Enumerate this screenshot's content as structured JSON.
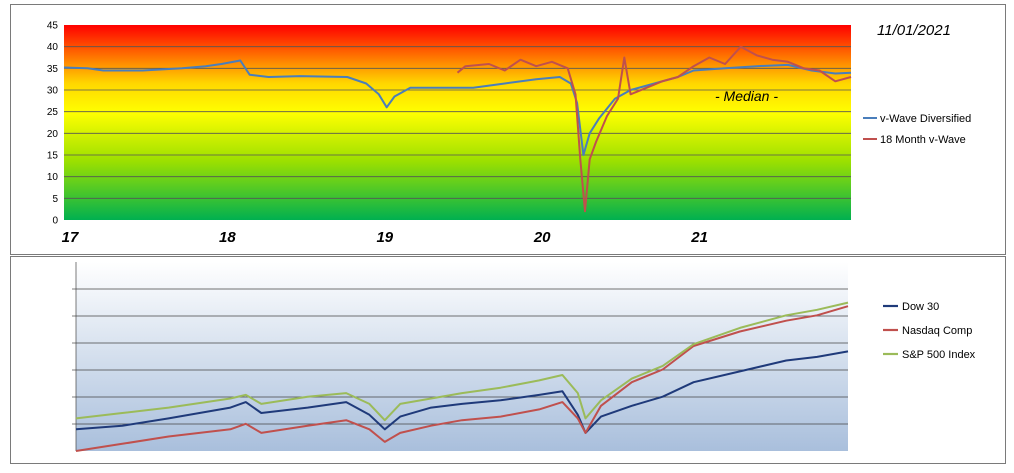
{
  "chart_data": [
    {
      "type": "line",
      "date_label": "11/01/2021",
      "annotation": "- Median -",
      "ylim": [
        0,
        45
      ],
      "yticks": [
        "0",
        "5",
        "10",
        "15",
        "20",
        "25",
        "30",
        "35",
        "40",
        "45"
      ],
      "xlim": [
        17,
        22
      ],
      "xticks": [
        "17",
        "18",
        "19",
        "20",
        "21"
      ],
      "grid": true,
      "legend_position": "right",
      "background": "red-to-green vertical gradient",
      "series": [
        {
          "name": "v-Wave Diversified",
          "color": "#4a7ebb",
          "points": [
            [
              17.0,
              35.2
            ],
            [
              17.15,
              35.0
            ],
            [
              17.25,
              34.5
            ],
            [
              17.5,
              34.5
            ],
            [
              17.75,
              35.0
            ],
            [
              17.9,
              35.5
            ],
            [
              18.0,
              36.0
            ],
            [
              18.12,
              36.8
            ],
            [
              18.18,
              33.5
            ],
            [
              18.3,
              33.0
            ],
            [
              18.5,
              33.2
            ],
            [
              18.8,
              33.0
            ],
            [
              18.92,
              31.5
            ],
            [
              19.0,
              29.0
            ],
            [
              19.05,
              26.0
            ],
            [
              19.1,
              28.5
            ],
            [
              19.2,
              30.5
            ],
            [
              19.4,
              30.5
            ],
            [
              19.6,
              30.5
            ],
            [
              19.8,
              31.5
            ],
            [
              20.0,
              32.5
            ],
            [
              20.15,
              33.0
            ],
            [
              20.22,
              31.5
            ],
            [
              20.26,
              27.0
            ],
            [
              20.3,
              15.0
            ],
            [
              20.34,
              20.0
            ],
            [
              20.4,
              23.5
            ],
            [
              20.5,
              28.0
            ],
            [
              20.6,
              30.0
            ],
            [
              20.75,
              31.5
            ],
            [
              20.9,
              33.0
            ],
            [
              21.0,
              34.5
            ],
            [
              21.2,
              35.0
            ],
            [
              21.4,
              35.5
            ],
            [
              21.6,
              35.8
            ],
            [
              21.75,
              34.5
            ],
            [
              21.9,
              33.8
            ],
            [
              22.0,
              34.0
            ]
          ]
        },
        {
          "name": "18 Month v-Wave",
          "color": "#c0504d",
          "points": [
            [
              19.5,
              34.0
            ],
            [
              19.55,
              35.5
            ],
            [
              19.7,
              36.0
            ],
            [
              19.8,
              34.5
            ],
            [
              19.9,
              37.0
            ],
            [
              20.0,
              35.5
            ],
            [
              20.1,
              36.5
            ],
            [
              20.2,
              35.0
            ],
            [
              20.25,
              29.0
            ],
            [
              20.28,
              14.0
            ],
            [
              20.31,
              2.0
            ],
            [
              20.34,
              14.0
            ],
            [
              20.38,
              18.0
            ],
            [
              20.45,
              24.0
            ],
            [
              20.52,
              28.0
            ],
            [
              20.56,
              37.5
            ],
            [
              20.6,
              29.0
            ],
            [
              20.7,
              30.5
            ],
            [
              20.8,
              32.0
            ],
            [
              20.9,
              33.0
            ],
            [
              21.0,
              35.5
            ],
            [
              21.1,
              37.5
            ],
            [
              21.2,
              36.0
            ],
            [
              21.3,
              40.0
            ],
            [
              21.4,
              38.0
            ],
            [
              21.5,
              37.0
            ],
            [
              21.6,
              36.5
            ],
            [
              21.7,
              35.0
            ],
            [
              21.8,
              34.5
            ],
            [
              21.9,
              32.0
            ],
            [
              22.0,
              33.0
            ]
          ]
        }
      ]
    },
    {
      "type": "line",
      "xlim": [
        17,
        22
      ],
      "ylim": [
        0,
        100
      ],
      "grid": true,
      "legend_position": "right",
      "series": [
        {
          "name": "Dow 30",
          "color": "#1f3a7a",
          "points": [
            [
              17.0,
              12
            ],
            [
              17.3,
              14
            ],
            [
              17.6,
              18
            ],
            [
              18.0,
              24
            ],
            [
              18.1,
              27
            ],
            [
              18.2,
              21
            ],
            [
              18.5,
              24
            ],
            [
              18.75,
              27
            ],
            [
              18.9,
              20
            ],
            [
              19.0,
              12
            ],
            [
              19.1,
              19
            ],
            [
              19.3,
              24
            ],
            [
              19.5,
              26
            ],
            [
              19.75,
              28
            ],
            [
              20.0,
              31
            ],
            [
              20.15,
              33
            ],
            [
              20.25,
              20
            ],
            [
              20.3,
              10
            ],
            [
              20.4,
              19
            ],
            [
              20.6,
              25
            ],
            [
              20.8,
              30
            ],
            [
              21.0,
              38
            ],
            [
              21.3,
              44
            ],
            [
              21.6,
              50
            ],
            [
              21.8,
              52
            ],
            [
              22.0,
              55
            ]
          ]
        },
        {
          "name": "Nasdaq Comp",
          "color": "#c0504d",
          "points": [
            [
              17.0,
              0
            ],
            [
              17.3,
              4
            ],
            [
              17.6,
              8
            ],
            [
              18.0,
              12
            ],
            [
              18.1,
              15
            ],
            [
              18.2,
              10
            ],
            [
              18.5,
              14
            ],
            [
              18.75,
              17
            ],
            [
              18.9,
              12
            ],
            [
              19.0,
              5
            ],
            [
              19.1,
              10
            ],
            [
              19.3,
              14
            ],
            [
              19.5,
              17
            ],
            [
              19.75,
              19
            ],
            [
              20.0,
              23
            ],
            [
              20.15,
              27
            ],
            [
              20.25,
              18
            ],
            [
              20.3,
              10
            ],
            [
              20.4,
              25
            ],
            [
              20.6,
              38
            ],
            [
              20.8,
              45
            ],
            [
              21.0,
              58
            ],
            [
              21.3,
              66
            ],
            [
              21.6,
              72
            ],
            [
              21.8,
              75
            ],
            [
              22.0,
              80
            ]
          ]
        },
        {
          "name": "S&P 500 Index",
          "color": "#9bbb59",
          "points": [
            [
              17.0,
              18
            ],
            [
              17.3,
              21
            ],
            [
              17.6,
              24
            ],
            [
              18.0,
              29
            ],
            [
              18.1,
              31
            ],
            [
              18.2,
              26
            ],
            [
              18.5,
              30
            ],
            [
              18.75,
              32
            ],
            [
              18.9,
              26
            ],
            [
              19.0,
              17
            ],
            [
              19.1,
              26
            ],
            [
              19.3,
              29
            ],
            [
              19.5,
              32
            ],
            [
              19.75,
              35
            ],
            [
              20.0,
              39
            ],
            [
              20.15,
              42
            ],
            [
              20.25,
              32
            ],
            [
              20.3,
              18
            ],
            [
              20.4,
              28
            ],
            [
              20.6,
              40
            ],
            [
              20.8,
              47
            ],
            [
              21.0,
              59
            ],
            [
              21.3,
              68
            ],
            [
              21.6,
              75
            ],
            [
              21.8,
              78
            ],
            [
              22.0,
              82
            ]
          ]
        }
      ]
    }
  ]
}
